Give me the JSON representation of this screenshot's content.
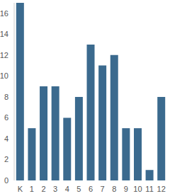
{
  "chart_data": {
    "type": "bar",
    "categories": [
      "K",
      "1",
      "2",
      "3",
      "4",
      "5",
      "6",
      "7",
      "8",
      "9",
      "10",
      "11",
      "12"
    ],
    "values": [
      17,
      5,
      9,
      9,
      6,
      8,
      13,
      11,
      12,
      5,
      5,
      1,
      8
    ],
    "color": "#3b6a8e",
    "ylim": [
      0,
      17
    ],
    "yticks": [
      0,
      2,
      4,
      6,
      8,
      10,
      12,
      14,
      16
    ],
    "grid": false
  }
}
